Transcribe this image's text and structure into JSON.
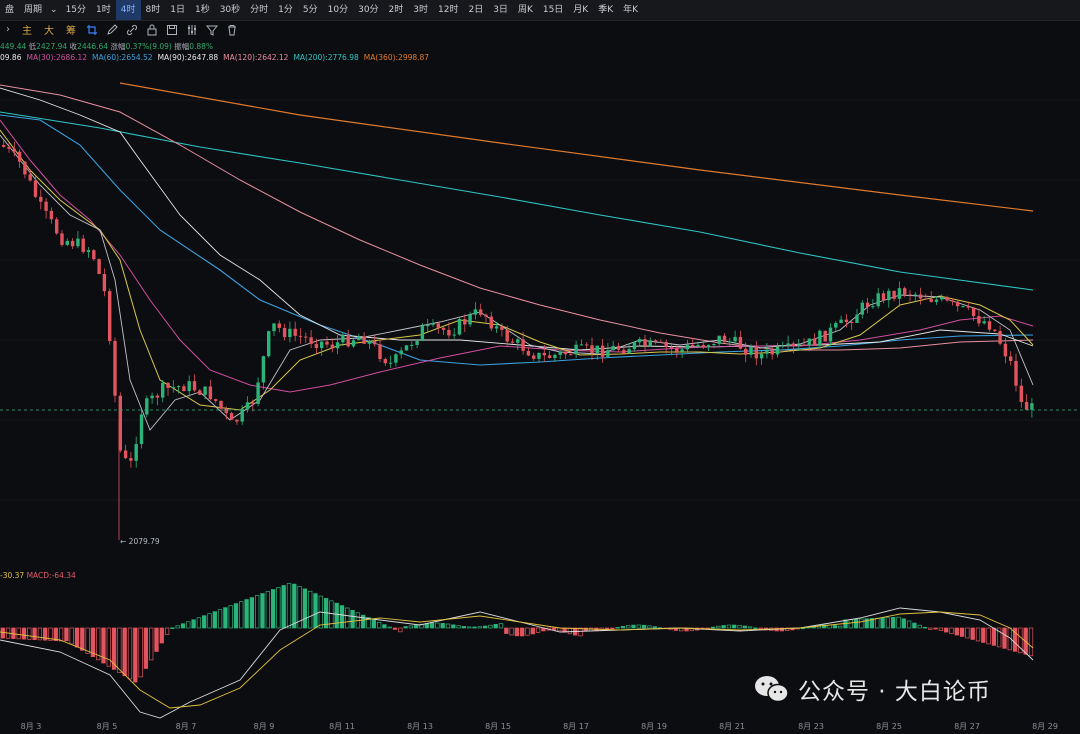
{
  "toolbar": {
    "items": [
      {
        "label": "盘",
        "active": false
      },
      {
        "label": "周期",
        "active": false
      },
      {
        "label": "15分",
        "active": false
      },
      {
        "label": "1时",
        "active": false
      },
      {
        "label": "4时",
        "active": true
      },
      {
        "label": "8时",
        "active": false
      },
      {
        "label": "1日",
        "active": false
      },
      {
        "label": "1秒",
        "active": false
      },
      {
        "label": "30秒",
        "active": false
      },
      {
        "label": "分时",
        "active": false
      },
      {
        "label": "1分",
        "active": false
      },
      {
        "label": "5分",
        "active": false
      },
      {
        "label": "10分",
        "active": false
      },
      {
        "label": "30分",
        "active": false
      },
      {
        "label": "2时",
        "active": false
      },
      {
        "label": "3时",
        "active": false
      },
      {
        "label": "12时",
        "active": false
      },
      {
        "label": "2日",
        "active": false
      },
      {
        "label": "3日",
        "active": false
      },
      {
        "label": "周K",
        "active": false
      },
      {
        "label": "15日",
        "active": false
      },
      {
        "label": "月K",
        "active": false
      },
      {
        "label": "季K",
        "active": false
      },
      {
        "label": "年K",
        "active": false
      }
    ]
  },
  "toolbar2": {
    "items": [
      "主",
      "大",
      "筹"
    ],
    "icons": [
      "crop-icon",
      "pen-icon",
      "link-icon",
      "lock-icon",
      "save-icon",
      "sliders-icon",
      "filter-icon",
      "trash-icon"
    ]
  },
  "ohlc": {
    "partial_open": "449.44",
    "low_label": "低",
    "low": "2427.94",
    "close_label": "收",
    "close": "2446.64",
    "change_label": "涨幅",
    "change": "0.37%(9.09)",
    "amp_label": "振幅",
    "amp": "0.88%"
  },
  "ma": [
    {
      "label": "09.86",
      "color": "#e6e6e6"
    },
    {
      "label": "MA(30):2686.12",
      "color": "#d14fa0"
    },
    {
      "label": "MA(60):2654.52",
      "color": "#3ba1e0"
    },
    {
      "label": "MA(90):2647.88",
      "color": "#e6e6e6"
    },
    {
      "label": "MA(120):2642.12",
      "color": "#e88fa0"
    },
    {
      "label": "MA(200):2776.98",
      "color": "#2ec4c4"
    },
    {
      "label": "MA(360):2998.87",
      "color": "#e07a2c"
    }
  ],
  "macd": {
    "dif": "-30.37",
    "dif_color": "#e0c040",
    "macd": "MACD:-64.34",
    "macd_color": "#e05a6a"
  },
  "low_marker": "← 2079.79",
  "xaxis": [
    "8月 3",
    "8月 5",
    "8月 7",
    "8月 9",
    "8月 11",
    "8月 13",
    "8月 15",
    "8月 17",
    "8月 19",
    "8月 21",
    "8月 23",
    "8月 25",
    "8月 27",
    "8月 29"
  ],
  "watermark": "公众号 · 大白论币",
  "colors": {
    "up": "#2bb37a",
    "down": "#e2545e",
    "bg": "#0c0d10"
  }
}
